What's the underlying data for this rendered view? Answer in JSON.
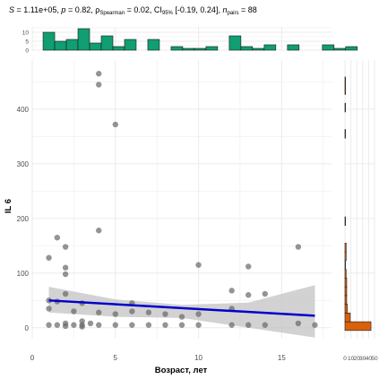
{
  "chart_data": {
    "type": "scatter",
    "subtitle": {
      "S_label": "S",
      "S_value": "1.11e+05",
      "p_label": "p",
      "p_value": "0.82",
      "rho_symbol": "ρ",
      "rho_sub": "Spearman",
      "rho_value": "0.02",
      "ci_label": "CI",
      "ci_sub": "95%",
      "ci_value": "[-0.19, 0.24]",
      "n_label": "n",
      "n_sub": "pairs",
      "n_value": "88"
    },
    "xlabel": "Возраст, лет",
    "ylabel": "IL 6",
    "xlim": [
      0,
      18
    ],
    "ylim": [
      -20,
      490
    ],
    "x_ticks": [
      "0",
      "5",
      "10",
      "15"
    ],
    "x_tick_values": [
      0,
      5,
      10,
      15
    ],
    "y_ticks": [
      "0",
      "100",
      "200",
      "300",
      "400"
    ],
    "y_tick_values": [
      0,
      100,
      200,
      300,
      400
    ],
    "grid": true,
    "points": [
      [
        1,
        128
      ],
      [
        1,
        50
      ],
      [
        1,
        35
      ],
      [
        1,
        5
      ],
      [
        1.5,
        165
      ],
      [
        1.5,
        48
      ],
      [
        1.5,
        5
      ],
      [
        2,
        148
      ],
      [
        2,
        110
      ],
      [
        2,
        98
      ],
      [
        2,
        62
      ],
      [
        2,
        8
      ],
      [
        2,
        3
      ],
      [
        2.5,
        30
      ],
      [
        2.5,
        5
      ],
      [
        3,
        45
      ],
      [
        3,
        12
      ],
      [
        3,
        5
      ],
      [
        3,
        2
      ],
      [
        3.5,
        8
      ],
      [
        4,
        465
      ],
      [
        4,
        445
      ],
      [
        4,
        178
      ],
      [
        4,
        28
      ],
      [
        4,
        5
      ],
      [
        5,
        372
      ],
      [
        5,
        25
      ],
      [
        5,
        5
      ],
      [
        6,
        45
      ],
      [
        6,
        30
      ],
      [
        6,
        5
      ],
      [
        7,
        28
      ],
      [
        7,
        5
      ],
      [
        8,
        25
      ],
      [
        8,
        5
      ],
      [
        9,
        20
      ],
      [
        9,
        5
      ],
      [
        10,
        115
      ],
      [
        10,
        25
      ],
      [
        10,
        5
      ],
      [
        12,
        68
      ],
      [
        12,
        35
      ],
      [
        12,
        5
      ],
      [
        13,
        112
      ],
      [
        13,
        60
      ],
      [
        13,
        5
      ],
      [
        14,
        62
      ],
      [
        14,
        5
      ],
      [
        16,
        148
      ],
      [
        16,
        8
      ],
      [
        17,
        5
      ]
    ],
    "regression": {
      "x0": 1,
      "y0": 50,
      "x1": 17,
      "y1": 22
    },
    "confidence_band": {
      "x": [
        1,
        5,
        9,
        13,
        17
      ],
      "lower": [
        28,
        20,
        18,
        0,
        -18
      ],
      "upper": [
        75,
        52,
        42,
        46,
        78
      ]
    },
    "top_histogram": {
      "ticks": [
        "0",
        "5",
        "10"
      ],
      "tick_values": [
        0,
        5,
        10
      ],
      "ymax": 13,
      "bin_width": 0.7,
      "bins_start": 1,
      "counts": [
        10,
        5,
        6,
        12,
        4,
        8,
        2,
        6,
        0,
        6,
        0,
        2,
        1,
        1,
        2,
        0,
        8,
        2,
        1,
        3,
        0,
        3,
        0,
        0,
        3,
        1,
        2
      ]
    },
    "right_histogram": {
      "ticks": [
        "0",
        "10",
        "20",
        "30",
        "40",
        "50"
      ],
      "tick_values": [
        0,
        10,
        20,
        30,
        40,
        50
      ],
      "xmax": 50,
      "bin_width": 16,
      "bins_start": -5,
      "counts": [
        44,
        9,
        4,
        3,
        3,
        3,
        2,
        1,
        2,
        2,
        0,
        0,
        1,
        0,
        0,
        0,
        0,
        0,
        0,
        0,
        0,
        0,
        1,
        0,
        0,
        1,
        0,
        1,
        1,
        0,
        0
      ]
    },
    "colors": {
      "points": "#666666",
      "regression": "#0000cc",
      "band": "#bfbfbf",
      "top_hist": "#119e72",
      "right_hist": "#d9610e",
      "grid": "#ebebeb"
    }
  }
}
